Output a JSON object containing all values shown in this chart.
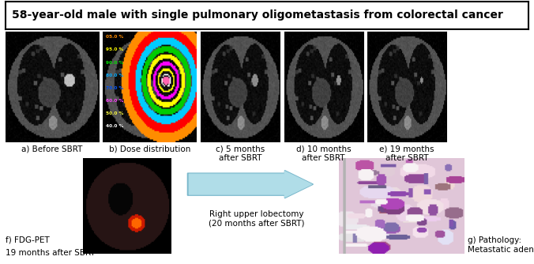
{
  "title": "58-year-old male with single pulmonary oligometastasis from colorectal cancer",
  "title_fontsize": 10,
  "title_fontweight": "bold",
  "background_color": "#ffffff",
  "top_row_labels": [
    "a) Before SBRT",
    "b) Dose distribution",
    "c) 5 months\nafter SBRT",
    "d) 10 months\nafter SBRT",
    "e) 19 months\nafter SBRT"
  ],
  "bottom_left_label_line1": "f) FDG-PET",
  "bottom_left_label_line2": "19 months after SBRT",
  "arrow_text": "Right upper lobectomy\n(20 months after SBRT)",
  "bottom_right_label": "g) Pathology:\nMetastatic adenocarcinoma",
  "label_fontsize": 7.5,
  "arrow_color": "#b0dde8",
  "arrow_edge": "#7ab8cc"
}
